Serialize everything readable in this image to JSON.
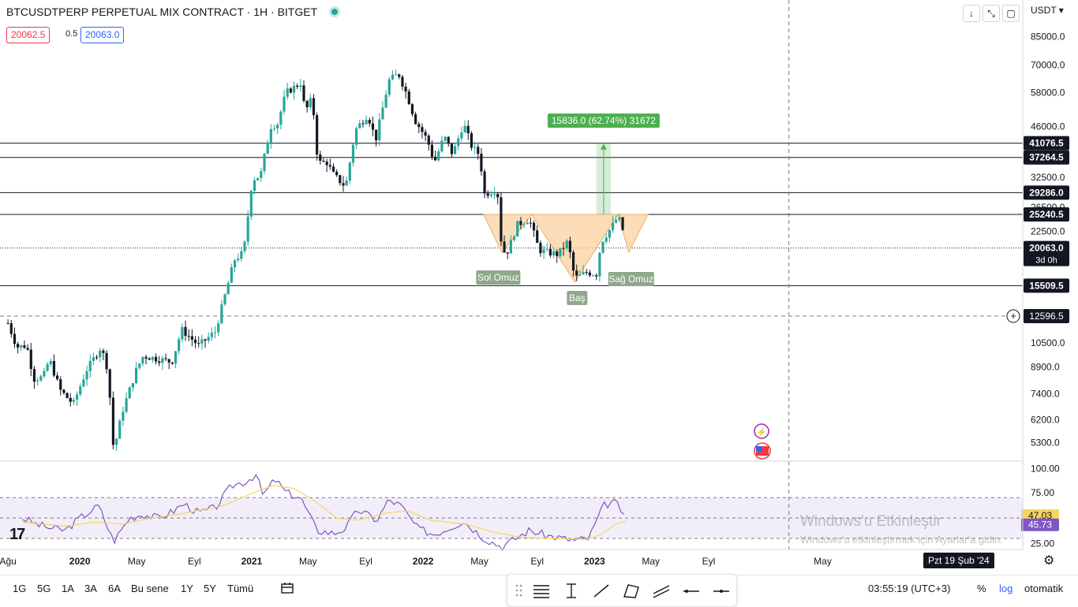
{
  "header": {
    "title": "BTCUSDTPERP PERPETUAL MIX CONTRACT · 1H · BITGET",
    "bid": "20062.5",
    "spread": "0.5",
    "ask": "20063.0",
    "currency": "USDT",
    "tools": [
      "arrow-down-icon",
      "compare-icon",
      "fullscreen-icon"
    ]
  },
  "colors": {
    "up": "#26a69a",
    "down": "#131722",
    "hline": "#131722",
    "rsi": "#7e57c2",
    "rsi_ma": "#f7d55d",
    "pattern_fill": "#fbd2a0",
    "target": "#4caf50"
  },
  "chart_data": [
    {
      "type": "candlestick",
      "scale": "log",
      "ylim": [
        4700,
        95000
      ],
      "x_range": [
        "2019-07-15",
        "2025-07-01"
      ],
      "y_ticks": [
        "85000.0",
        "70000.0",
        "58000.0",
        "46000.0",
        "32500.0",
        "26500.0",
        "22500.0",
        "10500.0",
        "8900.0",
        "7400.0",
        "6200.0",
        "5300.0"
      ],
      "x_ticks": [
        {
          "date": "2019-08-01",
          "label": "Ağu"
        },
        {
          "date": "2020-01-01",
          "label": "2020"
        },
        {
          "date": "2020-05-01",
          "label": "May"
        },
        {
          "date": "2020-09-01",
          "label": "Eyl"
        },
        {
          "date": "2021-01-01",
          "label": "2021"
        },
        {
          "date": "2021-05-01",
          "label": "May"
        },
        {
          "date": "2021-09-01",
          "label": "Eyl"
        },
        {
          "date": "2022-01-01",
          "label": "2022"
        },
        {
          "date": "2022-05-01",
          "label": "May"
        },
        {
          "date": "2022-09-01",
          "label": "Eyl"
        },
        {
          "date": "2023-01-01",
          "label": "2023"
        },
        {
          "date": "2023-05-01",
          "label": "May"
        },
        {
          "date": "2023-09-01",
          "label": "Eyl"
        },
        {
          "date": "2024-05-01",
          "label": "May"
        }
      ],
      "path": [
        [
          "2019-08-01",
          12000
        ],
        [
          "2019-08-20",
          10200
        ],
        [
          "2019-09-10",
          10300
        ],
        [
          "2019-09-25",
          8200
        ],
        [
          "2019-10-15",
          8300
        ],
        [
          "2019-10-28",
          9400
        ],
        [
          "2019-11-20",
          7600
        ],
        [
          "2019-12-18",
          6900
        ],
        [
          "2020-01-15",
          8700
        ],
        [
          "2020-02-15",
          10200
        ],
        [
          "2020-03-01",
          8700
        ],
        [
          "2020-03-13",
          5000
        ],
        [
          "2020-04-01",
          6600
        ],
        [
          "2020-04-30",
          8700
        ],
        [
          "2020-05-15",
          9600
        ],
        [
          "2020-06-15",
          9400
        ],
        [
          "2020-07-15",
          9200
        ],
        [
          "2020-08-05",
          11500
        ],
        [
          "2020-09-10",
          10300
        ],
        [
          "2020-10-15",
          11300
        ],
        [
          "2020-11-01",
          13800
        ],
        [
          "2020-11-25",
          18500
        ],
        [
          "2020-12-15",
          19500
        ],
        [
          "2021-01-02",
          32000
        ],
        [
          "2021-01-20",
          33000
        ],
        [
          "2021-02-10",
          46000
        ],
        [
          "2021-02-25",
          47000
        ],
        [
          "2021-03-15",
          58000
        ],
        [
          "2021-04-15",
          62000
        ],
        [
          "2021-04-25",
          51000
        ],
        [
          "2021-05-10",
          56000
        ],
        [
          "2021-05-22",
          36000
        ],
        [
          "2021-06-10",
          36000
        ],
        [
          "2021-06-25",
          33000
        ],
        [
          "2021-07-20",
          30500
        ],
        [
          "2021-08-10",
          45000
        ],
        [
          "2021-09-05",
          50000
        ],
        [
          "2021-09-22",
          42000
        ],
        [
          "2021-10-20",
          63000
        ],
        [
          "2021-11-10",
          66000
        ],
        [
          "2021-11-28",
          57000
        ],
        [
          "2021-12-15",
          48000
        ],
        [
          "2022-01-10",
          42000
        ],
        [
          "2022-01-25",
          36000
        ],
        [
          "2022-02-15",
          43000
        ],
        [
          "2022-03-05",
          38000
        ],
        [
          "2022-03-28",
          47000
        ],
        [
          "2022-04-15",
          40000
        ],
        [
          "2022-05-01",
          38000
        ],
        [
          "2022-05-12",
          29000
        ],
        [
          "2022-06-08",
          30000
        ],
        [
          "2022-06-18",
          19500
        ],
        [
          "2022-07-01",
          19700
        ],
        [
          "2022-07-20",
          23500
        ],
        [
          "2022-08-15",
          24500
        ],
        [
          "2022-09-05",
          19800
        ],
        [
          "2022-09-20",
          19500
        ],
        [
          "2022-10-15",
          19200
        ],
        [
          "2022-11-05",
          21000
        ],
        [
          "2022-11-20",
          16300
        ],
        [
          "2022-12-15",
          17000
        ],
        [
          "2023-01-05",
          16800
        ],
        [
          "2023-01-15",
          20900
        ],
        [
          "2023-02-05",
          23000
        ],
        [
          "2023-02-20",
          24800
        ],
        [
          "2023-03-01",
          23200
        ],
        [
          "2023-03-08",
          20063
        ]
      ],
      "horizontal_levels": [
        "41076.5",
        "37264.5",
        "29286.0",
        "25240.5",
        "15509.5"
      ],
      "last_price": {
        "value": "20063.0",
        "countdown": "3d 0h"
      },
      "crosshair": {
        "value": "12596.5",
        "date_label": "Pzt 19 Şub '24"
      },
      "pattern_labels": {
        "left": "Sol Omuz",
        "head": "Baş",
        "right": "Sağ Omuz"
      },
      "target_label": "15836.0 (62.74%) 31672"
    },
    {
      "type": "line",
      "name": "RSI",
      "ylim": [
        20,
        105
      ],
      "y_ticks": [
        "100.00",
        "75.00",
        "25.00"
      ],
      "band": [
        30,
        70
      ],
      "value_labels": [
        "47.03",
        "45.73"
      ],
      "rsi_path": [
        [
          "2019-09-01",
          50
        ],
        [
          "2019-10-01",
          44
        ],
        [
          "2019-11-01",
          40
        ],
        [
          "2019-12-01",
          38
        ],
        [
          "2020-01-01",
          50
        ],
        [
          "2020-02-10",
          62
        ],
        [
          "2020-03-13",
          27
        ],
        [
          "2020-04-15",
          50
        ],
        [
          "2020-05-15",
          54
        ],
        [
          "2020-06-15",
          50
        ],
        [
          "2020-07-15",
          56
        ],
        [
          "2020-08-10",
          64
        ],
        [
          "2020-09-10",
          55
        ],
        [
          "2020-10-15",
          60
        ],
        [
          "2020-11-20",
          82
        ],
        [
          "2020-12-20",
          86
        ],
        [
          "2021-01-10",
          93
        ],
        [
          "2021-01-25",
          72
        ],
        [
          "2021-02-20",
          88
        ],
        [
          "2021-03-15",
          75
        ],
        [
          "2021-04-15",
          70
        ],
        [
          "2021-05-20",
          38
        ],
        [
          "2021-06-25",
          35
        ],
        [
          "2021-07-20",
          40
        ],
        [
          "2021-08-15",
          58
        ],
        [
          "2021-09-25",
          48
        ],
        [
          "2021-10-20",
          68
        ],
        [
          "2021-11-15",
          62
        ],
        [
          "2021-12-20",
          40
        ],
        [
          "2022-01-25",
          34
        ],
        [
          "2022-03-28",
          47
        ],
        [
          "2022-05-12",
          30
        ],
        [
          "2022-06-18",
          22
        ],
        [
          "2022-08-15",
          38
        ],
        [
          "2022-09-20",
          33
        ],
        [
          "2022-11-20",
          28
        ],
        [
          "2022-12-20",
          30
        ],
        [
          "2023-01-20",
          62
        ],
        [
          "2023-02-10",
          66
        ],
        [
          "2023-02-25",
          60
        ],
        [
          "2023-03-08",
          45.73
        ]
      ],
      "ma_path": [
        [
          "2019-09-01",
          46
        ],
        [
          "2019-12-01",
          42
        ],
        [
          "2020-02-01",
          46
        ],
        [
          "2020-04-01",
          44
        ],
        [
          "2020-06-01",
          50
        ],
        [
          "2020-08-15",
          55
        ],
        [
          "2020-11-01",
          62
        ],
        [
          "2021-01-01",
          74
        ],
        [
          "2021-02-15",
          82
        ],
        [
          "2021-04-01",
          79
        ],
        [
          "2021-05-15",
          67
        ],
        [
          "2021-07-01",
          50
        ],
        [
          "2021-08-15",
          48
        ],
        [
          "2021-10-15",
          55
        ],
        [
          "2021-12-01",
          57
        ],
        [
          "2022-01-15",
          48
        ],
        [
          "2022-04-01",
          44
        ],
        [
          "2022-06-01",
          36
        ],
        [
          "2022-08-01",
          31
        ],
        [
          "2022-10-01",
          30
        ],
        [
          "2022-12-15",
          29
        ],
        [
          "2023-01-15",
          34
        ],
        [
          "2023-02-15",
          44
        ],
        [
          "2023-03-08",
          47.03
        ]
      ]
    }
  ],
  "bottom": {
    "ranges": [
      "1G",
      "5G",
      "1A",
      "3A",
      "6A",
      "Bu sene",
      "1Y",
      "5Y",
      "Tümü"
    ],
    "clock": "03:55:19 (UTC+3)",
    "percent": "%",
    "log": "log",
    "auto": "otomatik"
  },
  "watermark": {
    "line1": "Windows'u Etkinleştir",
    "line2": "Windows'u etkinleştirmek için Ayarlar'a gidin."
  },
  "logo": "TV"
}
